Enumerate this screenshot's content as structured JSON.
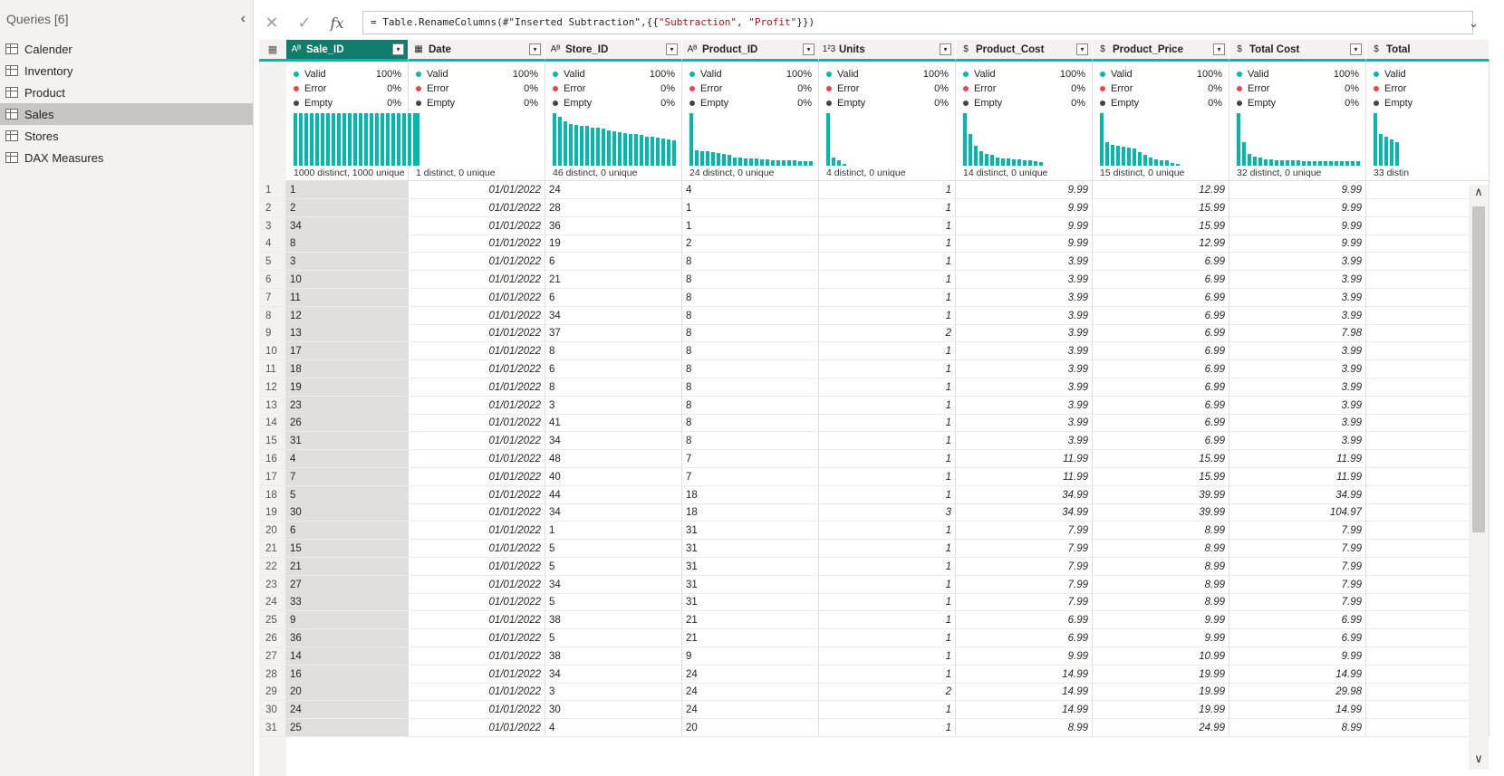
{
  "queries": {
    "title": "Queries [6]",
    "items": [
      {
        "label": "Calender"
      },
      {
        "label": "Inventory"
      },
      {
        "label": "Product"
      },
      {
        "label": "Sales"
      },
      {
        "label": "Stores"
      },
      {
        "label": "DAX Measures"
      }
    ],
    "selected_index": 3
  },
  "formula": {
    "prefix": "= Table.RenameColumns(#\"Inserted Subtraction\",{{",
    "str1": "\"Subtraction\"",
    "sep": ", ",
    "str2": "\"Profit\"",
    "suffix": "}})",
    "fx_label": "fx"
  },
  "columns": [
    {
      "name": "Sale_ID",
      "type": "ABC",
      "valid": "100%",
      "error": "0%",
      "empty": "0%",
      "stat": "1000 distinct, 1000 unique",
      "hist": [
        1,
        1,
        1,
        1,
        1,
        1,
        1,
        1,
        1,
        1,
        1,
        1,
        1,
        1,
        1,
        1,
        1,
        1,
        1,
        1,
        1,
        1,
        1
      ]
    },
    {
      "name": "Date",
      "type": "date",
      "valid": "100%",
      "error": "0%",
      "empty": "0%",
      "stat": "1 distinct, 0 unique",
      "hist": [
        1
      ]
    },
    {
      "name": "Store_ID",
      "type": "ABC",
      "valid": "100%",
      "error": "0%",
      "empty": "0%",
      "stat": "46 distinct, 0 unique",
      "hist": [
        1,
        0.93,
        0.85,
        0.8,
        0.78,
        0.76,
        0.75,
        0.73,
        0.72,
        0.7,
        0.68,
        0.66,
        0.64,
        0.62,
        0.6,
        0.6,
        0.58,
        0.56,
        0.55,
        0.54,
        0.52,
        0.5,
        0.48
      ]
    },
    {
      "name": "Product_ID",
      "type": "ABC",
      "valid": "100%",
      "error": "0%",
      "empty": "0%",
      "stat": "24 distinct, 0 unique",
      "hist": [
        1,
        0.3,
        0.28,
        0.27,
        0.26,
        0.24,
        0.22,
        0.2,
        0.16,
        0.15,
        0.14,
        0.14,
        0.13,
        0.12,
        0.12,
        0.11,
        0.11,
        0.1,
        0.1,
        0.1,
        0.09,
        0.09,
        0.09
      ]
    },
    {
      "name": "Units",
      "type": "123",
      "valid": "100%",
      "error": "0%",
      "empty": "0%",
      "stat": "4 distinct, 0 unique",
      "hist": [
        1,
        0.15,
        0.1,
        0.04
      ]
    },
    {
      "name": "Product_Cost",
      "type": "$",
      "valid": "100%",
      "error": "0%",
      "empty": "0%",
      "stat": "14 distinct, 0 unique",
      "hist": [
        1,
        0.6,
        0.38,
        0.28,
        0.22,
        0.2,
        0.16,
        0.14,
        0.13,
        0.12,
        0.12,
        0.11,
        0.1,
        0.08,
        0.07
      ]
    },
    {
      "name": "Product_Price",
      "type": "$",
      "valid": "100%",
      "error": "0%",
      "empty": "0%",
      "stat": "15 distinct, 0 unique",
      "hist": [
        1,
        0.45,
        0.4,
        0.38,
        0.36,
        0.35,
        0.33,
        0.25,
        0.2,
        0.15,
        0.12,
        0.1,
        0.1,
        0.06,
        0.04
      ]
    },
    {
      "name": "Total Cost",
      "type": "$",
      "valid": "100%",
      "error": "0%",
      "empty": "0%",
      "stat": "32 distinct, 0 unique",
      "hist": [
        1,
        0.45,
        0.22,
        0.18,
        0.15,
        0.12,
        0.12,
        0.11,
        0.1,
        0.1,
        0.1,
        0.1,
        0.09,
        0.09,
        0.09,
        0.08,
        0.08,
        0.08,
        0.08,
        0.08,
        0.08,
        0.08,
        0.08
      ]
    },
    {
      "name": "Total",
      "type": "$",
      "valid": "Valid",
      "error": "Error",
      "empty": "Empty",
      "stat": "33 distin",
      "hist": [
        1,
        0.6,
        0.55,
        0.5,
        0.45
      ]
    }
  ],
  "labels": {
    "valid": "Valid",
    "error": "Error",
    "empty": "Empty"
  },
  "rows": [
    [
      "1",
      "1",
      "01/01/2022",
      "24",
      "4",
      "1",
      "9.99",
      "12.99",
      "9.99"
    ],
    [
      "2",
      "2",
      "01/01/2022",
      "28",
      "1",
      "1",
      "9.99",
      "15.99",
      "9.99"
    ],
    [
      "3",
      "34",
      "01/01/2022",
      "36",
      "1",
      "1",
      "9.99",
      "15.99",
      "9.99"
    ],
    [
      "4",
      "8",
      "01/01/2022",
      "19",
      "2",
      "1",
      "9.99",
      "12.99",
      "9.99"
    ],
    [
      "5",
      "3",
      "01/01/2022",
      "6",
      "8",
      "1",
      "3.99",
      "6.99",
      "3.99"
    ],
    [
      "6",
      "10",
      "01/01/2022",
      "21",
      "8",
      "1",
      "3.99",
      "6.99",
      "3.99"
    ],
    [
      "7",
      "11",
      "01/01/2022",
      "6",
      "8",
      "1",
      "3.99",
      "6.99",
      "3.99"
    ],
    [
      "8",
      "12",
      "01/01/2022",
      "34",
      "8",
      "1",
      "3.99",
      "6.99",
      "3.99"
    ],
    [
      "9",
      "13",
      "01/01/2022",
      "37",
      "8",
      "2",
      "3.99",
      "6.99",
      "7.98"
    ],
    [
      "10",
      "17",
      "01/01/2022",
      "8",
      "8",
      "1",
      "3.99",
      "6.99",
      "3.99"
    ],
    [
      "11",
      "18",
      "01/01/2022",
      "6",
      "8",
      "1",
      "3.99",
      "6.99",
      "3.99"
    ],
    [
      "12",
      "19",
      "01/01/2022",
      "8",
      "8",
      "1",
      "3.99",
      "6.99",
      "3.99"
    ],
    [
      "13",
      "23",
      "01/01/2022",
      "3",
      "8",
      "1",
      "3.99",
      "6.99",
      "3.99"
    ],
    [
      "14",
      "26",
      "01/01/2022",
      "41",
      "8",
      "1",
      "3.99",
      "6.99",
      "3.99"
    ],
    [
      "15",
      "31",
      "01/01/2022",
      "34",
      "8",
      "1",
      "3.99",
      "6.99",
      "3.99"
    ],
    [
      "16",
      "4",
      "01/01/2022",
      "48",
      "7",
      "1",
      "11.99",
      "15.99",
      "11.99"
    ],
    [
      "17",
      "7",
      "01/01/2022",
      "40",
      "7",
      "1",
      "11.99",
      "15.99",
      "11.99"
    ],
    [
      "18",
      "5",
      "01/01/2022",
      "44",
      "18",
      "1",
      "34.99",
      "39.99",
      "34.99"
    ],
    [
      "19",
      "30",
      "01/01/2022",
      "34",
      "18",
      "3",
      "34.99",
      "39.99",
      "104.97"
    ],
    [
      "20",
      "6",
      "01/01/2022",
      "1",
      "31",
      "1",
      "7.99",
      "8.99",
      "7.99"
    ],
    [
      "21",
      "15",
      "01/01/2022",
      "5",
      "31",
      "1",
      "7.99",
      "8.99",
      "7.99"
    ],
    [
      "22",
      "21",
      "01/01/2022",
      "5",
      "31",
      "1",
      "7.99",
      "8.99",
      "7.99"
    ],
    [
      "23",
      "27",
      "01/01/2022",
      "34",
      "31",
      "1",
      "7.99",
      "8.99",
      "7.99"
    ],
    [
      "24",
      "33",
      "01/01/2022",
      "5",
      "31",
      "1",
      "7.99",
      "8.99",
      "7.99"
    ],
    [
      "25",
      "9",
      "01/01/2022",
      "38",
      "21",
      "1",
      "6.99",
      "9.99",
      "6.99"
    ],
    [
      "26",
      "36",
      "01/01/2022",
      "5",
      "21",
      "1",
      "6.99",
      "9.99",
      "6.99"
    ],
    [
      "27",
      "14",
      "01/01/2022",
      "38",
      "9",
      "1",
      "9.99",
      "10.99",
      "9.99"
    ],
    [
      "28",
      "16",
      "01/01/2022",
      "34",
      "24",
      "1",
      "14.99",
      "19.99",
      "14.99"
    ],
    [
      "29",
      "20",
      "01/01/2022",
      "3",
      "24",
      "2",
      "14.99",
      "19.99",
      "29.98"
    ],
    [
      "30",
      "24",
      "01/01/2022",
      "30",
      "24",
      "1",
      "14.99",
      "19.99",
      "14.99"
    ],
    [
      "31",
      "25",
      "01/01/2022",
      "4",
      "20",
      "1",
      "8.99",
      "24.99",
      "8.99"
    ]
  ],
  "colors": {
    "accent": "#01b8aa",
    "selected_header": "#107c6b",
    "valid": "#01b8aa",
    "error": "#e8464e",
    "empty": "#444444"
  }
}
